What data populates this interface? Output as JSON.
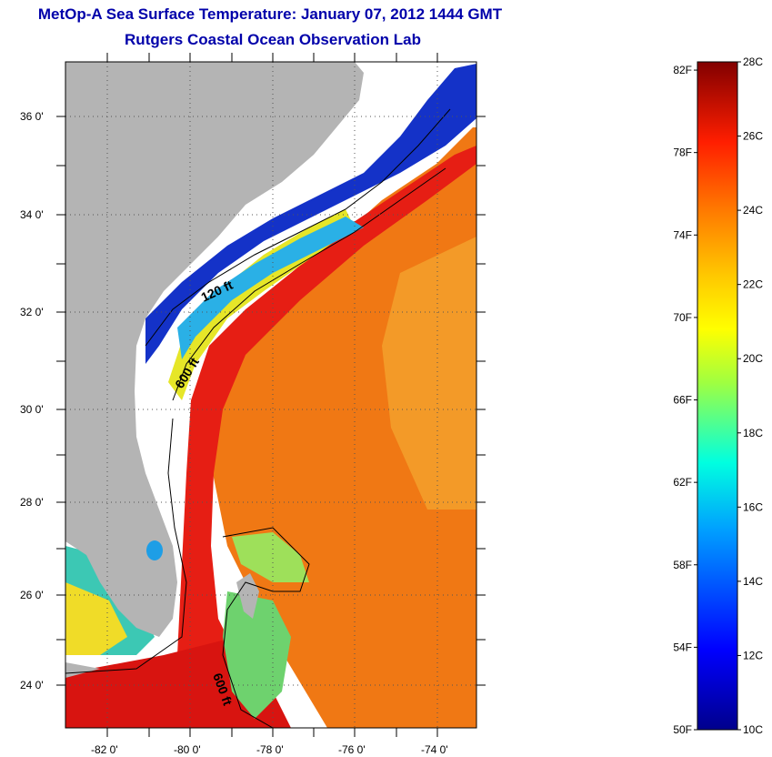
{
  "title": {
    "line1": "MetOp-A Sea Surface Temperature:  January 07, 2012 1444 GMT",
    "line2": "Rutgers Coastal Ocean Observation Lab"
  },
  "map": {
    "lat_labels": [
      "36 0'",
      "34 0'",
      "32 0'",
      "30 0'",
      "28 0'",
      "26 0'",
      "24 0'"
    ],
    "lon_labels": [
      "-82 0'",
      "-80 0'",
      "-78 0'",
      "-76 0'",
      "-74 0'"
    ],
    "contour_labels": [
      "120 ft",
      "600 ft",
      "600 ft"
    ],
    "colors": {
      "land": "#b4b4b4",
      "cloud": "#ffffff",
      "cold": "#0a1ed2",
      "mid": "#ffe600",
      "warm": "#f07814",
      "hot": "#e61e14"
    }
  },
  "colorbar": {
    "fahrenheit_labels": [
      "82F",
      "78F",
      "74F",
      "70F",
      "66F",
      "62F",
      "58F",
      "54F",
      "50F"
    ],
    "celsius_labels": [
      "28C",
      "26C",
      "24C",
      "22C",
      "20C",
      "18C",
      "16C",
      "14C",
      "12C",
      "10C"
    ],
    "range_c": [
      10,
      28
    ],
    "range_f": [
      50,
      82.4
    ]
  }
}
